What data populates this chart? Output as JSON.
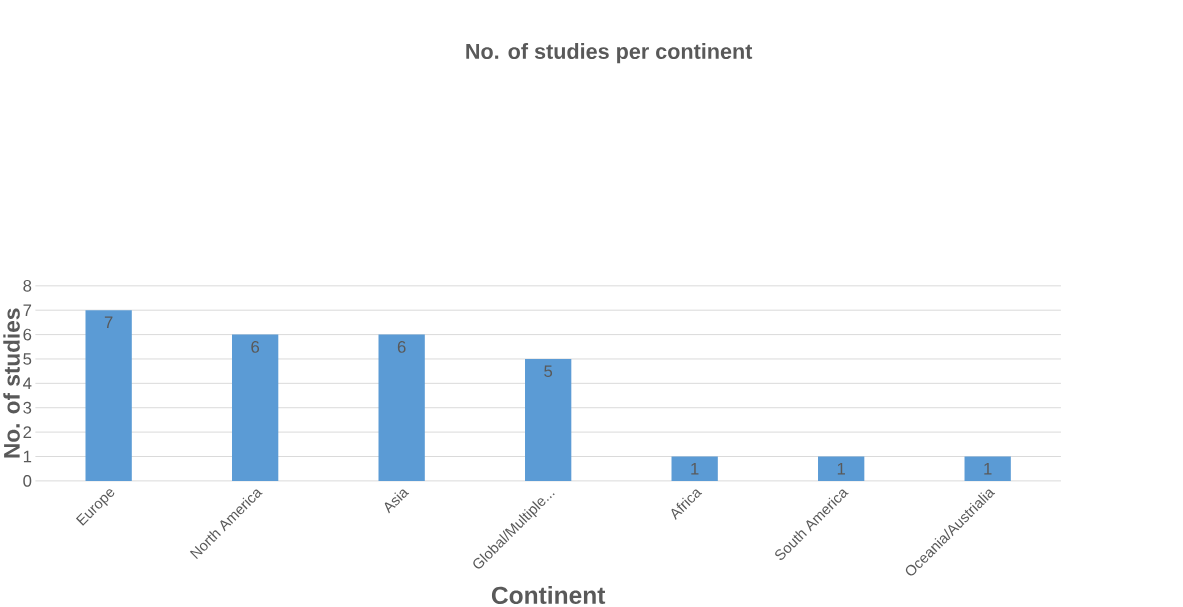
{
  "chart_data": {
    "type": "bar",
    "title": "No. of studies per continent",
    "xlabel": "Continent",
    "ylabel": "No. of studies",
    "categories": [
      "Europe",
      "North America",
      "Asia",
      "Global/Multiple...",
      "Africa",
      "South America",
      "Oceania/Austrialia"
    ],
    "values": [
      7,
      6,
      6,
      5,
      1,
      1,
      1
    ],
    "color": "#5b9bd5",
    "ylim": [
      0,
      8
    ],
    "yticks": [
      0,
      1,
      2,
      3,
      4,
      5,
      6,
      7,
      8
    ],
    "grid": "y",
    "data_labels": true
  }
}
